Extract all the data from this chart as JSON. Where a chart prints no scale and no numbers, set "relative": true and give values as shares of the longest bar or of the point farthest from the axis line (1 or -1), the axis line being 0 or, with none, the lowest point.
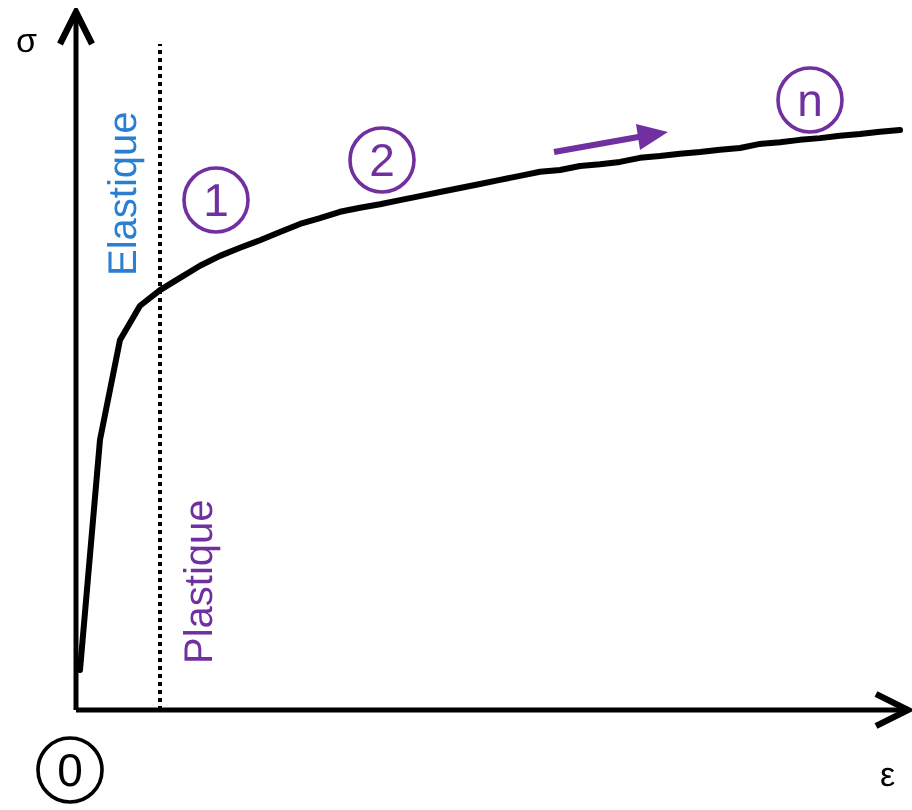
{
  "chart_data": {
    "type": "line",
    "relative": true,
    "xlabel": "ε",
    "ylabel": "σ",
    "categories": [
      null,
      null,
      null,
      null,
      null,
      null,
      null,
      null,
      null,
      null,
      null,
      null,
      null,
      null,
      null,
      null,
      null,
      null,
      null,
      null,
      null,
      null,
      null,
      null,
      null,
      null,
      null,
      null,
      null,
      null,
      null,
      null,
      null,
      null,
      null,
      null,
      null,
      null,
      null,
      null,
      null,
      null
    ],
    "series": [
      {
        "color": "#000000",
        "values": [
          0.069,
          0.466,
          0.638,
          0.697,
          0.724,
          0.745,
          0.766,
          0.783,
          0.797,
          0.81,
          0.824,
          0.838,
          0.848,
          0.859,
          0.866,
          0.872,
          0.879,
          0.886,
          0.893,
          0.9,
          0.907,
          0.914,
          0.921,
          0.928,
          0.931,
          0.938,
          0.941,
          0.945,
          0.952,
          0.955,
          0.959,
          0.962,
          0.966,
          0.969,
          0.976,
          0.979,
          0.983,
          0.986,
          0.99,
          0.993,
          0.997,
          1.0
        ]
      }
    ],
    "annotations": [
      "Elastique",
      "Plastique",
      "1",
      "2",
      "n",
      "0"
    ],
    "marker": "none",
    "line_style": "solid"
  }
}
